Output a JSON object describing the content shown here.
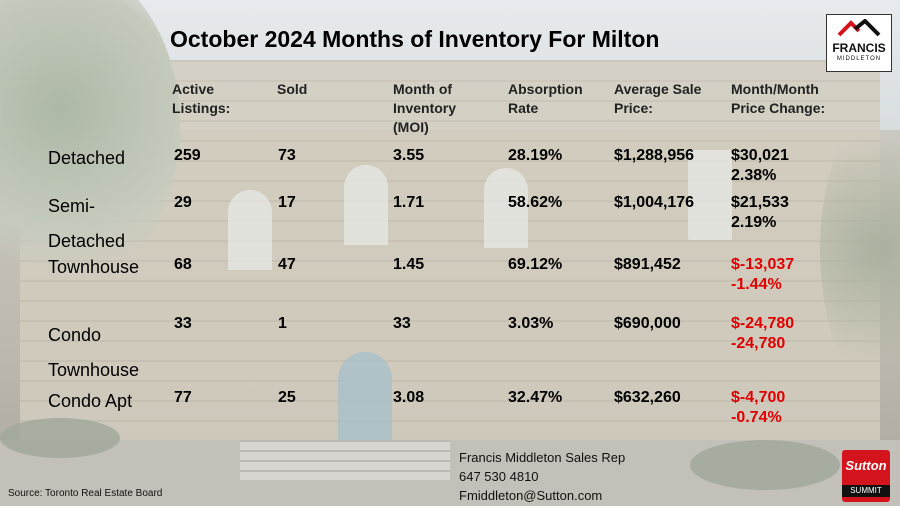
{
  "title": "October 2024 Months of Inventory For Milton",
  "headers": {
    "active": "Active\nListings:",
    "sold": "Sold",
    "moi": "Month of\nInventory\n(MOI)",
    "absorption": "Absorption\nRate",
    "avg_price": "Average Sale\nPrice:",
    "change": "Month/Month\nPrice Change:"
  },
  "rows": [
    {
      "label": "Detached",
      "active": "259",
      "sold": "73",
      "moi": "3.55",
      "absorption": "28.19%",
      "avg_price": "$1,288,956",
      "change": "$30,021\n2.38%"
    },
    {
      "label": "Semi-\nDetached",
      "active": "29",
      "sold": "17",
      "moi": "1.71",
      "absorption": "58.62%",
      "avg_price": "$1,004,176",
      "change": "$21,533\n2.19%"
    },
    {
      "label": "Townhouse",
      "active": "68",
      "sold": "47",
      "moi": "1.45",
      "absorption": "69.12%",
      "avg_price": "$891,452",
      "change": "$-13,037\n-1.44%"
    },
    {
      "label": "Condo\nTownhouse",
      "active": "33",
      "sold": "1",
      "moi": "33",
      "absorption": "3.03%",
      "avg_price": "$690,000",
      "change": "$-24,780\n-24,780"
    },
    {
      "label": "Condo Apt",
      "active": "77",
      "sold": "25",
      "moi": "3.08",
      "absorption": "32.47%",
      "avg_price": "$632,260",
      "change": "$-4,700\n-0.74%"
    }
  ],
  "logo": {
    "name": "FRANCIS",
    "sub": "MIDDLETON",
    "icon": "house-roof-icon"
  },
  "brokerage": {
    "name": "Sutton",
    "sub": "SUMMIT"
  },
  "contact": {
    "name": "Francis Middleton Sales Rep",
    "phone": "647 530 4810",
    "email": "Fmiddleton@Sutton.com"
  },
  "source": "Source: Toronto Real Estate Board",
  "colors": {
    "negative": "#e00000",
    "brand_red": "#d4141c"
  }
}
